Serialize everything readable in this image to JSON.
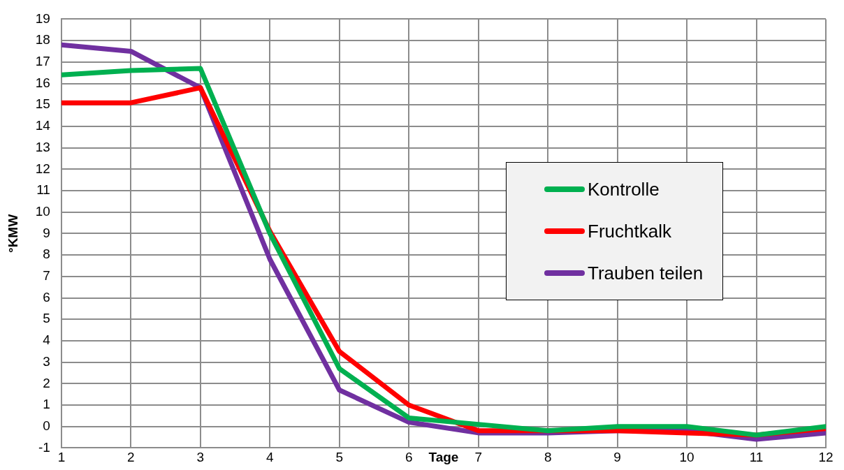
{
  "chart_data": {
    "type": "line",
    "xlabel": "Tage",
    "ylabel": "°KMW",
    "x": [
      1,
      2,
      3,
      4,
      5,
      6,
      7,
      8,
      9,
      10,
      11,
      12
    ],
    "series": [
      {
        "name": "Kontrolle",
        "color": "#00b050",
        "values": [
          16.4,
          16.6,
          16.7,
          9.0,
          2.7,
          0.4,
          0.1,
          -0.2,
          0.0,
          0.0,
          -0.4,
          0.0
        ]
      },
      {
        "name": "Fruchtkalk",
        "color": "#ff0000",
        "values": [
          15.1,
          15.1,
          15.8,
          9.1,
          3.5,
          1.0,
          -0.2,
          -0.2,
          -0.2,
          -0.3,
          -0.4,
          -0.1
        ]
      },
      {
        "name": "Trauben teilen",
        "color": "#7030a0",
        "values": [
          17.8,
          17.5,
          15.8,
          7.8,
          1.7,
          0.2,
          -0.3,
          -0.3,
          -0.2,
          -0.2,
          -0.6,
          -0.3
        ]
      }
    ],
    "xlim": [
      1,
      12
    ],
    "xticks": [
      1,
      2,
      3,
      4,
      5,
      6,
      7,
      8,
      9,
      10,
      11,
      12
    ],
    "ylim": [
      -1,
      19
    ],
    "yticks": [
      -1,
      0,
      1,
      2,
      3,
      4,
      5,
      6,
      7,
      8,
      9,
      10,
      11,
      12,
      13,
      14,
      15,
      16,
      17,
      18,
      19
    ],
    "grid": true,
    "legend": "right",
    "marker": "none",
    "line_style": "solid"
  }
}
